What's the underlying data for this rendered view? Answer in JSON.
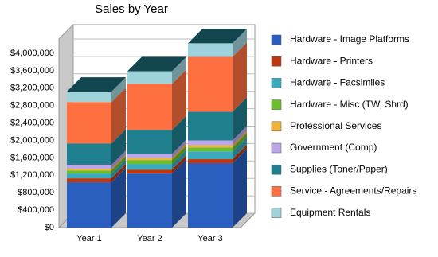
{
  "chart_data": {
    "type": "bar3d_stacked",
    "title": "Sales by Year",
    "categories": [
      "Year 1",
      "Year 2",
      "Year 3"
    ],
    "series": [
      {
        "name": "Hardware - Image Platforms",
        "color": "#2a5fbf",
        "values": [
          1040000,
          1240000,
          1480000
        ]
      },
      {
        "name": "Hardware - Printers",
        "color": "#c0360e",
        "values": [
          90000,
          90000,
          90000
        ]
      },
      {
        "name": "Hardware - Facsimiles",
        "color": "#3aabbb",
        "values": [
          110000,
          130000,
          180000
        ]
      },
      {
        "name": "Hardware - Misc (TW, Shrd)",
        "color": "#6abf2a",
        "values": [
          70000,
          90000,
          90000
        ]
      },
      {
        "name": "Professional Services",
        "color": "#f0b43c",
        "values": [
          40000,
          50000,
          50000
        ]
      },
      {
        "name": "Government (Comp)",
        "color": "#bba6e8",
        "values": [
          90000,
          90000,
          110000
        ]
      },
      {
        "name": "Supplies (Toner/Paper)",
        "color": "#1f7f8f",
        "values": [
          490000,
          550000,
          660000
        ]
      },
      {
        "name": "Service - Agreements/Repairs",
        "color": "#ff7040",
        "values": [
          950000,
          1060000,
          1260000
        ]
      },
      {
        "name": "Equipment Rentals",
        "color": "#9fd3dc",
        "values": [
          240000,
          290000,
          310000
        ]
      }
    ],
    "ylim": [
      0,
      4000000
    ],
    "yticks": [
      {
        "value": 0,
        "label": "$0"
      },
      {
        "value": 400000,
        "label": "$400,000"
      },
      {
        "value": 800000,
        "label": "$800,000"
      },
      {
        "value": 1200000,
        "label": "$1,200,000"
      },
      {
        "value": 1600000,
        "label": "$1,600,000"
      },
      {
        "value": 2000000,
        "label": "$2,000,000"
      },
      {
        "value": 2400000,
        "label": "$2,400,000"
      },
      {
        "value": 2800000,
        "label": "$2,800,000"
      },
      {
        "value": 3200000,
        "label": "$3,200,000"
      },
      {
        "value": 3600000,
        "label": "$3,600,000"
      },
      {
        "value": 4000000,
        "label": "$4,000,000"
      }
    ],
    "grid": true
  }
}
